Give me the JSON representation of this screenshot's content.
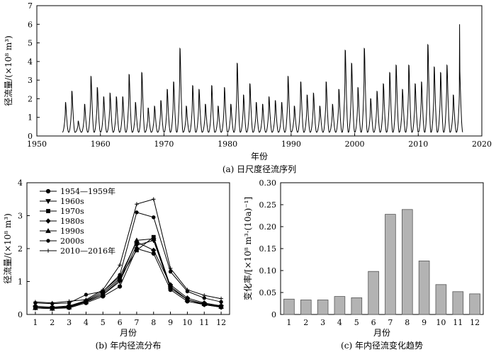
{
  "chart_data": [
    {
      "id": "a",
      "type": "line",
      "caption": "(a) 日尺度径流序列",
      "xlabel": "年份",
      "ylabel": "径流量/(×10⁸ m³)",
      "xlim": [
        1950,
        2020
      ],
      "ylim": [
        0,
        7
      ],
      "xticks": [
        1950,
        1960,
        1970,
        1980,
        1990,
        2000,
        2010,
        2020
      ],
      "yticks": [
        0,
        1,
        2,
        3,
        4,
        5,
        6,
        7
      ],
      "series": [
        {
          "years": [
            1954,
            1955,
            1956,
            1957,
            1958,
            1959,
            1960,
            1961,
            1962,
            1963,
            1964,
            1965,
            1966,
            1967,
            1968,
            1969,
            1970,
            1971,
            1972,
            1973,
            1974,
            1975,
            1976,
            1977,
            1978,
            1979,
            1980,
            1981,
            1982,
            1983,
            1984,
            1985,
            1986,
            1987,
            1988,
            1989,
            1990,
            1991,
            1992,
            1993,
            1994,
            1995,
            1996,
            1997,
            1998,
            1999,
            2000,
            2001,
            2002,
            2003,
            2004,
            2005,
            2006,
            2007,
            2008,
            2009,
            2010,
            2011,
            2012,
            2013,
            2014,
            2015,
            2016
          ],
          "annual_peaks": [
            1.8,
            2.4,
            0.8,
            1.7,
            3.2,
            2.6,
            2.1,
            2.3,
            2.1,
            2.1,
            3.3,
            1.8,
            3.4,
            1.5,
            1.6,
            1.9,
            2.5,
            2.9,
            4.7,
            1.6,
            2.7,
            2.5,
            1.7,
            2.7,
            1.6,
            2.6,
            1.7,
            3.9,
            2.2,
            2.8,
            1.8,
            1.7,
            2.1,
            1.9,
            1.8,
            3.2,
            1.6,
            2.9,
            2.2,
            2.3,
            1.6,
            2.9,
            1.7,
            2.5,
            4.6,
            3.9,
            2.6,
            4.7,
            2.0,
            2.4,
            2.8,
            3.4,
            3.8,
            2.5,
            3.8,
            2.8,
            2.9,
            4.9,
            3.7,
            3.4,
            3.8,
            2.2,
            3.5
          ],
          "annual_base": 0.2,
          "final_year_extra_peak": 6.0
        }
      ]
    },
    {
      "id": "b",
      "type": "line",
      "caption": "(b) 年内径流分布",
      "xlabel": "月份",
      "ylabel": "径流量/(×10⁸ m³)",
      "xlim": [
        0.5,
        12.5
      ],
      "ylim": [
        0,
        4
      ],
      "categories": [
        1,
        2,
        3,
        4,
        5,
        6,
        7,
        8,
        9,
        10,
        11,
        12
      ],
      "yticks": [
        0,
        1,
        2,
        3,
        4
      ],
      "legend_position": "top-left",
      "series": [
        {
          "name": "1954—1959年",
          "marker": "circle",
          "values": [
            0.2,
            0.18,
            0.2,
            0.35,
            0.55,
            0.85,
            2.0,
            1.85,
            0.75,
            0.4,
            0.3,
            0.22
          ]
        },
        {
          "name": "1960s",
          "marker": "triangle-down",
          "values": [
            0.2,
            0.18,
            0.22,
            0.38,
            0.6,
            1.0,
            2.1,
            2.25,
            0.8,
            0.45,
            0.3,
            0.22
          ]
        },
        {
          "name": "1970s",
          "marker": "square",
          "values": [
            0.22,
            0.2,
            0.24,
            0.4,
            0.65,
            1.1,
            1.95,
            2.35,
            0.85,
            0.45,
            0.32,
            0.24
          ]
        },
        {
          "name": "1980s",
          "marker": "diamond",
          "values": [
            0.25,
            0.22,
            0.26,
            0.42,
            0.7,
            1.15,
            2.2,
            1.95,
            0.9,
            0.5,
            0.35,
            0.26
          ]
        },
        {
          "name": "1990s",
          "marker": "triangle-up",
          "values": [
            0.2,
            0.18,
            0.22,
            0.38,
            0.6,
            1.05,
            2.25,
            2.3,
            0.85,
            0.45,
            0.32,
            0.24
          ]
        },
        {
          "name": "2000s",
          "marker": "dot",
          "values": [
            0.35,
            0.33,
            0.35,
            0.6,
            0.7,
            1.2,
            3.1,
            2.95,
            1.3,
            0.7,
            0.5,
            0.38
          ]
        },
        {
          "name": "2010—2016年",
          "marker": "plus",
          "values": [
            0.38,
            0.35,
            0.4,
            0.45,
            0.75,
            1.5,
            3.35,
            3.5,
            1.4,
            0.75,
            0.58,
            0.48
          ]
        }
      ]
    },
    {
      "id": "c",
      "type": "bar",
      "caption": "(c) 年内径流变化趋势",
      "xlabel": "月份",
      "ylabel": "变化率/[×10⁸ m³·(10a)⁻¹]",
      "categories": [
        1,
        2,
        3,
        4,
        5,
        6,
        7,
        8,
        9,
        10,
        11,
        12
      ],
      "values": [
        0.035,
        0.033,
        0.033,
        0.041,
        0.038,
        0.098,
        0.228,
        0.239,
        0.122,
        0.068,
        0.052,
        0.047
      ],
      "ylim": [
        0,
        0.3
      ],
      "yticks": [
        "0",
        "0.05",
        "0.10",
        "0.15",
        "0.20",
        "0.25",
        "0.30"
      ],
      "bar_color": "#b3b3b3"
    }
  ]
}
